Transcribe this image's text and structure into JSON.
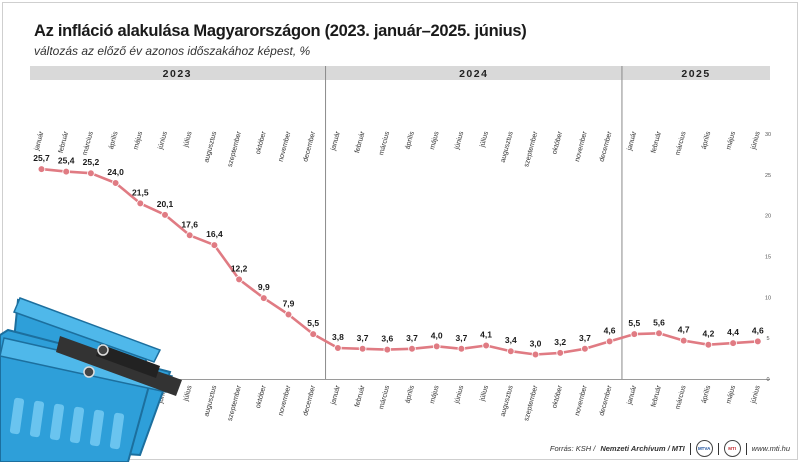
{
  "title": "Az infláció alakulása Magyarországon (2023. január–2025. június)",
  "subtitle": "változás az előző év azonos időszakához képest, %",
  "footer": {
    "source_prefix": "Forrás: KSH /",
    "archive": "Nemzeti Archívum / MTI",
    "site": "www.mti.hu",
    "logo1": "MTVA",
    "logo2": "MTI"
  },
  "colors": {
    "line": "#e07b83",
    "year_band": "#d9d9d9",
    "basket": "#2e9fd9",
    "basket_handle": "#333333"
  },
  "decoration": "basket-icon",
  "chart_data": {
    "type": "line",
    "title": "Az infláció alakulása Magyarországon (2023. január–2025. június)",
    "subtitle": "változás az előző év azonos időszakához képest, %",
    "years": [
      {
        "label": "2023",
        "months": 12
      },
      {
        "label": "2024",
        "months": 12
      },
      {
        "label": "2025",
        "months": 6
      }
    ],
    "categories": [
      "január",
      "február",
      "március",
      "április",
      "május",
      "június",
      "július",
      "augusztus",
      "szeptember",
      "október",
      "november",
      "december",
      "január",
      "február",
      "március",
      "április",
      "május",
      "június",
      "július",
      "augusztus",
      "szeptember",
      "október",
      "november",
      "december",
      "január",
      "február",
      "március",
      "április",
      "május",
      "június"
    ],
    "series": [
      {
        "values": [
          25.7,
          25.4,
          25.2,
          24.0,
          21.5,
          20.1,
          17.6,
          16.4,
          12.2,
          9.9,
          7.9,
          5.5,
          3.8,
          3.7,
          3.6,
          3.7,
          4.0,
          3.7,
          4.1,
          3.4,
          3.0,
          3.2,
          3.7,
          4.6,
          5.5,
          5.6,
          4.7,
          4.2,
          4.4,
          4.6
        ],
        "labels": [
          "25,7",
          "25,4",
          "25,2",
          "24,0",
          "21,5",
          "20,1",
          "17,6",
          "16,4",
          "12,2",
          "9,9",
          "7,9",
          "5,5",
          "3,8",
          "3,7",
          "3,6",
          "3,7",
          "4,0",
          "3,7",
          "4,1",
          "3,4",
          "3,0",
          "3,2",
          "3,7",
          "4,6",
          "5,5",
          "5,6",
          "4,7",
          "4,2",
          "4,4",
          "4,6"
        ]
      }
    ],
    "ylim": [
      0,
      30
    ],
    "yticks": [
      0,
      5,
      10,
      15,
      20,
      25,
      30
    ],
    "ytick_labels": [
      "0",
      "5",
      "10",
      "15",
      "20",
      "25",
      "30"
    ],
    "grid": false,
    "legend": "none"
  }
}
